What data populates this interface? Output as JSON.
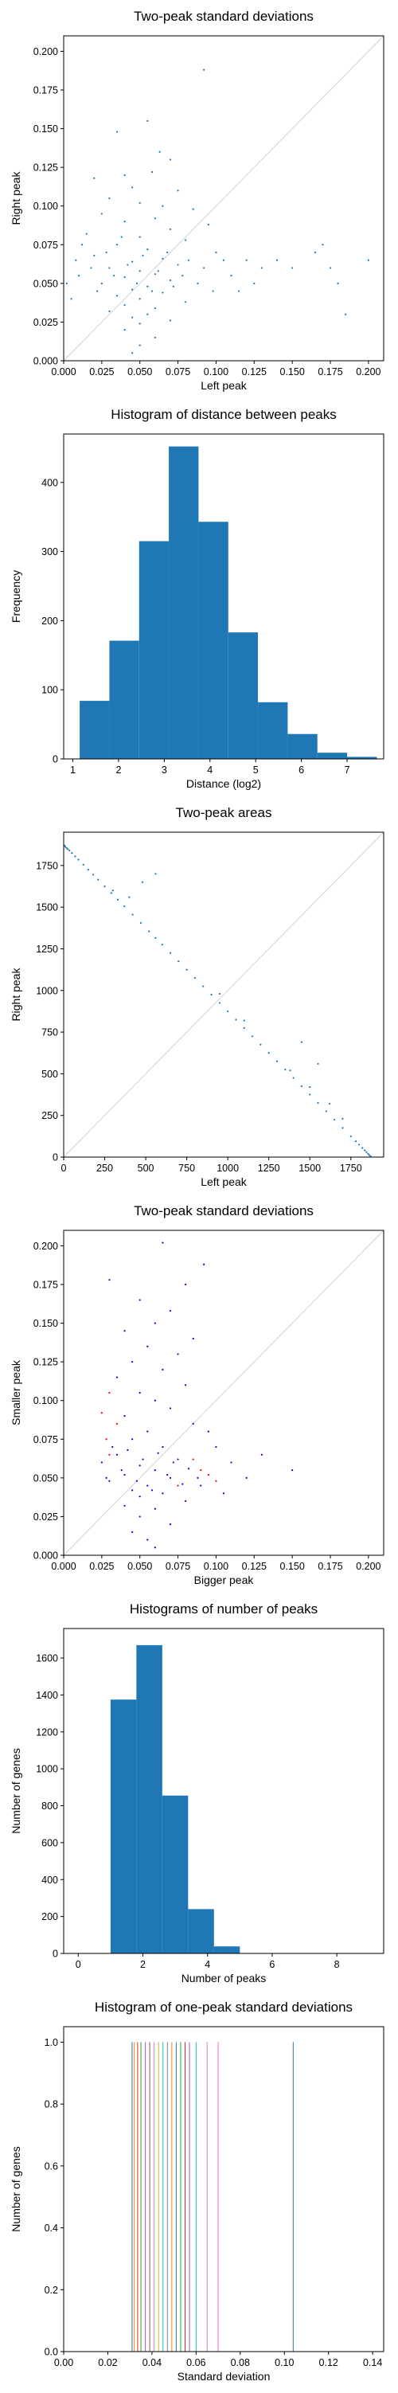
{
  "colors": {
    "blue": "#1f77b4",
    "pure_blue": "#0000ff",
    "red": "#ff0000",
    "diag": "#c8c8c8"
  },
  "chart_data": [
    {
      "type": "scatter",
      "title": "Two-peak standard deviations",
      "xlabel": "Left peak",
      "ylabel": "Right peak",
      "xlim": [
        0.0,
        0.21
      ],
      "ylim": [
        0.0,
        0.21
      ],
      "xticks": [
        0.0,
        0.025,
        0.05,
        0.075,
        0.1,
        0.125,
        0.15,
        0.175,
        0.2
      ],
      "xtick_labels": [
        "0.000",
        "0.025",
        "0.050",
        "0.075",
        "0.100",
        "0.125",
        "0.150",
        "0.175",
        "0.200"
      ],
      "yticks": [
        0.0,
        0.025,
        0.05,
        0.075,
        0.1,
        0.125,
        0.15,
        0.175,
        0.2
      ],
      "ytick_labels": [
        "0.000",
        "0.025",
        "0.050",
        "0.075",
        "0.100",
        "0.125",
        "0.150",
        "0.175",
        "0.200"
      ],
      "diagonal": true,
      "points": [
        [
          0.092,
          0.188
        ],
        [
          0.035,
          0.148
        ],
        [
          0.055,
          0.155
        ],
        [
          0.063,
          0.135
        ],
        [
          0.07,
          0.13
        ],
        [
          0.058,
          0.122
        ],
        [
          0.04,
          0.12
        ],
        [
          0.02,
          0.118
        ],
        [
          0.045,
          0.112
        ],
        [
          0.075,
          0.11
        ],
        [
          0.03,
          0.105
        ],
        [
          0.05,
          0.102
        ],
        [
          0.065,
          0.1
        ],
        [
          0.085,
          0.098
        ],
        [
          0.025,
          0.095
        ],
        [
          0.06,
          0.092
        ],
        [
          0.04,
          0.09
        ],
        [
          0.095,
          0.088
        ],
        [
          0.07,
          0.085
        ],
        [
          0.015,
          0.082
        ],
        [
          0.05,
          0.08
        ],
        [
          0.08,
          0.078
        ],
        [
          0.035,
          0.075
        ],
        [
          0.055,
          0.072
        ],
        [
          0.1,
          0.07
        ],
        [
          0.02,
          0.068
        ],
        [
          0.065,
          0.066
        ],
        [
          0.045,
          0.064
        ],
        [
          0.075,
          0.062
        ],
        [
          0.03,
          0.06
        ],
        [
          0.05,
          0.058
        ],
        [
          0.06,
          0.056
        ],
        [
          0.04,
          0.054
        ],
        [
          0.07,
          0.052
        ],
        [
          0.025,
          0.05
        ],
        [
          0.055,
          0.048
        ],
        [
          0.045,
          0.046
        ],
        [
          0.065,
          0.044
        ],
        [
          0.035,
          0.042
        ],
        [
          0.05,
          0.04
        ],
        [
          0.08,
          0.038
        ],
        [
          0.04,
          0.036
        ],
        [
          0.06,
          0.034
        ],
        [
          0.03,
          0.032
        ],
        [
          0.055,
          0.03
        ],
        [
          0.045,
          0.028
        ],
        [
          0.07,
          0.026
        ],
        [
          0.05,
          0.024
        ],
        [
          0.04,
          0.02
        ],
        [
          0.06,
          0.015
        ],
        [
          0.05,
          0.01
        ],
        [
          0.045,
          0.005
        ],
        [
          0.12,
          0.065
        ],
        [
          0.13,
          0.06
        ],
        [
          0.14,
          0.065
        ],
        [
          0.15,
          0.06
        ],
        [
          0.165,
          0.07
        ],
        [
          0.17,
          0.075
        ],
        [
          0.18,
          0.05
        ],
        [
          0.2,
          0.065
        ],
        [
          0.175,
          0.06
        ],
        [
          0.185,
          0.03
        ],
        [
          0.11,
          0.055
        ],
        [
          0.115,
          0.045
        ],
        [
          0.125,
          0.05
        ],
        [
          0.105,
          0.065
        ],
        [
          0.01,
          0.055
        ],
        [
          0.005,
          0.04
        ],
        [
          0.002,
          0.05
        ],
        [
          0.008,
          0.065
        ],
        [
          0.012,
          0.075
        ],
        [
          0.018,
          0.06
        ],
        [
          0.022,
          0.045
        ],
        [
          0.028,
          0.07
        ],
        [
          0.033,
          0.055
        ],
        [
          0.038,
          0.08
        ],
        [
          0.042,
          0.062
        ],
        [
          0.048,
          0.05
        ],
        [
          0.052,
          0.068
        ],
        [
          0.058,
          0.045
        ],
        [
          0.062,
          0.058
        ],
        [
          0.068,
          0.07
        ],
        [
          0.072,
          0.048
        ],
        [
          0.078,
          0.055
        ],
        [
          0.082,
          0.065
        ],
        [
          0.088,
          0.05
        ],
        [
          0.092,
          0.06
        ],
        [
          0.098,
          0.045
        ]
      ]
    },
    {
      "type": "bar",
      "title": "Histogram of distance between peaks",
      "xlabel": "Distance (log2)",
      "ylabel": "Frequency",
      "xlim": [
        0.8,
        7.8
      ],
      "ylim": [
        0,
        470
      ],
      "xticks": [
        1,
        2,
        3,
        4,
        5,
        6,
        7
      ],
      "xtick_labels": [
        "1",
        "2",
        "3",
        "4",
        "5",
        "6",
        "7"
      ],
      "yticks": [
        0,
        100,
        200,
        300,
        400
      ],
      "ytick_labels": [
        "0",
        "100",
        "200",
        "300",
        "400"
      ],
      "bin_edges": [
        1.15,
        1.8,
        2.45,
        3.1,
        3.75,
        4.4,
        5.05,
        5.7,
        6.35,
        7.0,
        7.65
      ],
      "values": [
        84,
        171,
        315,
        452,
        343,
        183,
        82,
        36,
        9,
        3
      ]
    },
    {
      "type": "scatter",
      "title": "Two-peak areas",
      "xlabel": "Left peak",
      "ylabel": "Right peak",
      "xlim": [
        0,
        1950
      ],
      "ylim": [
        0,
        1950
      ],
      "xticks": [
        0,
        250,
        500,
        750,
        1000,
        1250,
        1500,
        1750
      ],
      "xtick_labels": [
        "0",
        "250",
        "500",
        "750",
        "1000",
        "1250",
        "1500",
        "1750"
      ],
      "yticks": [
        0,
        250,
        500,
        750,
        1000,
        1250,
        1500,
        1750
      ],
      "ytick_labels": [
        "0",
        "250",
        "500",
        "750",
        "1000",
        "1250",
        "1500",
        "1750"
      ],
      "diagonal": true,
      "points": [
        [
          5,
          1870
        ],
        [
          10,
          1862
        ],
        [
          18,
          1855
        ],
        [
          25,
          1848
        ],
        [
          35,
          1840
        ],
        [
          50,
          1825
        ],
        [
          70,
          1805
        ],
        [
          90,
          1785
        ],
        [
          120,
          1755
        ],
        [
          150,
          1725
        ],
        [
          180,
          1695
        ],
        [
          210,
          1665
        ],
        [
          250,
          1625
        ],
        [
          290,
          1585
        ],
        [
          330,
          1545
        ],
        [
          370,
          1505
        ],
        [
          420,
          1455
        ],
        [
          470,
          1405
        ],
        [
          520,
          1355
        ],
        [
          560,
          1315
        ],
        [
          600,
          1275
        ],
        [
          650,
          1225
        ],
        [
          700,
          1175
        ],
        [
          750,
          1125
        ],
        [
          800,
          1075
        ],
        [
          850,
          1025
        ],
        [
          900,
          975
        ],
        [
          950,
          925
        ],
        [
          1000,
          875
        ],
        [
          1050,
          825
        ],
        [
          1100,
          775
        ],
        [
          1150,
          725
        ],
        [
          1200,
          675
        ],
        [
          1250,
          625
        ],
        [
          1300,
          575
        ],
        [
          1350,
          525
        ],
        [
          1400,
          475
        ],
        [
          1450,
          425
        ],
        [
          1500,
          375
        ],
        [
          1550,
          325
        ],
        [
          1600,
          275
        ],
        [
          1650,
          225
        ],
        [
          1700,
          175
        ],
        [
          1750,
          125
        ],
        [
          1780,
          95
        ],
        [
          1800,
          75
        ],
        [
          1820,
          55
        ],
        [
          1835,
          40
        ],
        [
          1845,
          30
        ],
        [
          1855,
          20
        ],
        [
          1862,
          12
        ],
        [
          1870,
          5
        ],
        [
          480,
          1650
        ],
        [
          560,
          1700
        ],
        [
          300,
          1600
        ],
        [
          400,
          1560
        ],
        [
          1450,
          690
        ],
        [
          1550,
          560
        ],
        [
          1500,
          420
        ],
        [
          1380,
          520
        ],
        [
          1620,
          320
        ],
        [
          1700,
          230
        ],
        [
          950,
          980
        ],
        [
          1100,
          820
        ]
      ]
    },
    {
      "type": "scatter",
      "title": "Two-peak standard deviations",
      "xlabel": "Bigger peak",
      "ylabel": "Smaller peak",
      "xlim": [
        0.0,
        0.21
      ],
      "ylim": [
        0.0,
        0.21
      ],
      "xticks": [
        0.0,
        0.025,
        0.05,
        0.075,
        0.1,
        0.125,
        0.15,
        0.175,
        0.2
      ],
      "xtick_labels": [
        "0.000",
        "0.025",
        "0.050",
        "0.075",
        "0.100",
        "0.125",
        "0.150",
        "0.175",
        "0.200"
      ],
      "yticks": [
        0.0,
        0.025,
        0.05,
        0.075,
        0.1,
        0.125,
        0.15,
        0.175,
        0.2
      ],
      "ytick_labels": [
        "0.000",
        "0.025",
        "0.050",
        "0.075",
        "0.100",
        "0.125",
        "0.150",
        "0.175",
        "0.200"
      ],
      "diagonal": true,
      "points": [
        [
          0.065,
          0.202
        ],
        [
          0.092,
          0.188
        ],
        [
          0.03,
          0.178
        ],
        [
          0.08,
          0.175
        ],
        [
          0.05,
          0.165
        ],
        [
          0.07,
          0.158
        ],
        [
          0.06,
          0.15
        ],
        [
          0.04,
          0.145
        ],
        [
          0.085,
          0.14
        ],
        [
          0.055,
          0.135
        ],
        [
          0.075,
          0.13
        ],
        [
          0.045,
          0.125
        ],
        [
          0.065,
          0.12
        ],
        [
          0.035,
          0.115
        ],
        [
          0.08,
          0.11
        ],
        [
          0.05,
          0.105
        ],
        [
          0.06,
          0.1
        ],
        [
          0.07,
          0.095
        ],
        [
          0.04,
          0.09
        ],
        [
          0.085,
          0.085
        ],
        [
          0.055,
          0.08
        ],
        [
          0.045,
          0.075
        ],
        [
          0.065,
          0.07
        ],
        [
          0.035,
          0.065
        ],
        [
          0.075,
          0.062
        ],
        [
          0.05,
          0.058
        ],
        [
          0.06,
          0.055
        ],
        [
          0.04,
          0.052
        ],
        [
          0.07,
          0.05
        ],
        [
          0.03,
          0.048
        ],
        [
          0.055,
          0.045
        ],
        [
          0.045,
          0.042
        ],
        [
          0.065,
          0.04
        ],
        [
          0.05,
          0.038
        ],
        [
          0.08,
          0.035
        ],
        [
          0.04,
          0.032
        ],
        [
          0.06,
          0.03
        ],
        [
          0.05,
          0.025
        ],
        [
          0.07,
          0.02
        ],
        [
          0.045,
          0.015
        ],
        [
          0.055,
          0.01
        ],
        [
          0.06,
          0.005
        ],
        [
          0.1,
          0.07
        ],
        [
          0.11,
          0.06
        ],
        [
          0.12,
          0.05
        ],
        [
          0.13,
          0.065
        ],
        [
          0.15,
          0.055
        ],
        [
          0.09,
          0.045
        ],
        [
          0.095,
          0.08
        ],
        [
          0.105,
          0.04
        ],
        [
          0.025,
          0.06
        ],
        [
          0.028,
          0.05
        ],
        [
          0.032,
          0.07
        ],
        [
          0.038,
          0.055
        ],
        [
          0.042,
          0.068
        ],
        [
          0.048,
          0.048
        ],
        [
          0.052,
          0.062
        ],
        [
          0.058,
          0.042
        ],
        [
          0.062,
          0.066
        ],
        [
          0.068,
          0.052
        ],
        [
          0.072,
          0.06
        ],
        [
          0.078,
          0.046
        ],
        [
          0.082,
          0.056
        ],
        [
          0.088,
          0.05
        ]
      ],
      "red_points": [
        [
          0.03,
          0.105
        ],
        [
          0.025,
          0.092
        ],
        [
          0.035,
          0.085
        ],
        [
          0.028,
          0.075
        ],
        [
          0.03,
          0.065
        ],
        [
          0.1,
          0.048
        ],
        [
          0.085,
          0.062
        ],
        [
          0.09,
          0.055
        ],
        [
          0.095,
          0.052
        ],
        [
          0.075,
          0.045
        ]
      ]
    },
    {
      "type": "bar",
      "title": "Histograms of number of peaks",
      "xlabel": "Number of peaks",
      "ylabel": "Number of genes",
      "xlim": [
        -0.45,
        9.45
      ],
      "ylim": [
        0,
        1760
      ],
      "xticks": [
        0,
        2,
        4,
        6,
        8
      ],
      "xtick_labels": [
        "0",
        "2",
        "4",
        "6",
        "8"
      ],
      "yticks": [
        0,
        200,
        400,
        600,
        800,
        1000,
        1200,
        1400,
        1600
      ],
      "ytick_labels": [
        "0",
        "200",
        "400",
        "600",
        "800",
        "1000",
        "1200",
        "1400",
        "1600"
      ],
      "bin_edges": [
        1,
        1.8,
        2.6,
        3.4,
        4.2,
        5.0,
        5.8,
        6.6,
        7.4,
        8.2,
        9.0
      ],
      "values": [
        1375,
        1670,
        855,
        240,
        38,
        2,
        0,
        0,
        0,
        0
      ]
    },
    {
      "type": "bar",
      "title": "Histogram of one-peak standard deviations",
      "xlabel": "Standard deviation",
      "ylabel": "Number of genes",
      "xlim": [
        0.0,
        0.145
      ],
      "ylim": [
        0,
        1.05
      ],
      "xticks": [
        0.0,
        0.02,
        0.04,
        0.06,
        0.08,
        0.1,
        0.12,
        0.14
      ],
      "xtick_labels": [
        "0.00",
        "0.02",
        "0.04",
        "0.06",
        "0.08",
        "0.10",
        "0.12",
        "0.14"
      ],
      "yticks": [
        0.0,
        0.2,
        0.4,
        0.6,
        0.8,
        1.0
      ],
      "ytick_labels": [
        "0.0",
        "0.2",
        "0.4",
        "0.6",
        "0.8",
        "1.0"
      ],
      "lines": [
        {
          "x": 0.031,
          "value": 1,
          "color": "#1f77b4"
        },
        {
          "x": 0.032,
          "value": 1,
          "color": "#ff7f0e"
        },
        {
          "x": 0.0335,
          "value": 1,
          "color": "#d62728"
        },
        {
          "x": 0.035,
          "value": 1,
          "color": "#2ca02c"
        },
        {
          "x": 0.037,
          "value": 1,
          "color": "#9467bd"
        },
        {
          "x": 0.039,
          "value": 1,
          "color": "#8c564b"
        },
        {
          "x": 0.041,
          "value": 1,
          "color": "#e377c2"
        },
        {
          "x": 0.043,
          "value": 1,
          "color": "#bcbd22"
        },
        {
          "x": 0.045,
          "value": 1,
          "color": "#17becf"
        },
        {
          "x": 0.047,
          "value": 1,
          "color": "#7f7f7f"
        },
        {
          "x": 0.049,
          "value": 1,
          "color": "#ff7f0e"
        },
        {
          "x": 0.051,
          "value": 1,
          "color": "#1f77b4"
        },
        {
          "x": 0.053,
          "value": 1,
          "color": "#2ca02c"
        },
        {
          "x": 0.055,
          "value": 1,
          "color": "#d62728"
        },
        {
          "x": 0.057,
          "value": 1,
          "color": "#9467bd"
        },
        {
          "x": 0.06,
          "value": 1,
          "color": "#17becf"
        },
        {
          "x": 0.065,
          "value": 1,
          "color": "#e377c2"
        },
        {
          "x": 0.07,
          "value": 1,
          "color": "#e377c2"
        },
        {
          "x": 0.104,
          "value": 1,
          "color": "#1f77b4"
        }
      ]
    }
  ]
}
